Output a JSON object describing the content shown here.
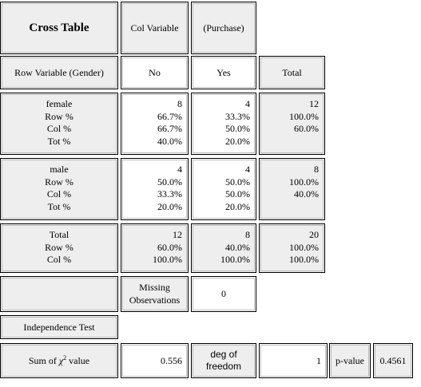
{
  "header": {
    "title": "Cross Table",
    "col_variable_label": "Col Variable",
    "col_variable_name": "(Purchase)",
    "row_variable_label": "Row Variable (Gender)",
    "col_no": "No",
    "col_yes": "Yes",
    "col_total": "Total"
  },
  "groups": [
    {
      "labels": [
        "female",
        "Row %",
        "Col %",
        "Tot %"
      ],
      "no": [
        "8",
        "66.7%",
        "66.7%",
        "40.0%"
      ],
      "yes": [
        "4",
        "33.3%",
        "50.0%",
        "20.0%"
      ],
      "total": [
        "12",
        "100.0%",
        "60.0%"
      ]
    },
    {
      "labels": [
        "male",
        "Row %",
        "Col %",
        "Tot %"
      ],
      "no": [
        "4",
        "50.0%",
        "33.3%",
        "20.0%"
      ],
      "yes": [
        "4",
        "50.0%",
        "50.0%",
        "20.0%"
      ],
      "total": [
        "8",
        "100.0%",
        "40.0%"
      ]
    }
  ],
  "totals": {
    "labels": [
      "Total",
      "Row %",
      "Col %"
    ],
    "no": [
      "12",
      "60.0%",
      "100.0%"
    ],
    "yes": [
      "8",
      "40.0%",
      "100.0%"
    ],
    "total": [
      "20",
      "100.0%",
      "100.0%"
    ]
  },
  "missing": {
    "label_line1": "Missing",
    "label_line2": "Observations",
    "value": "0"
  },
  "independence": {
    "heading": "Independence Test",
    "sum_label_prefix": "Sum of ",
    "sum_label_chi": "χ",
    "sum_label_sup": "2",
    "sum_label_suffix": " value",
    "sum_value": "0.556",
    "dof_line1": "deg of",
    "dof_line2": "freedom",
    "dof_value": "1",
    "pvalue_label": "p-value",
    "pvalue": "0.4561"
  }
}
